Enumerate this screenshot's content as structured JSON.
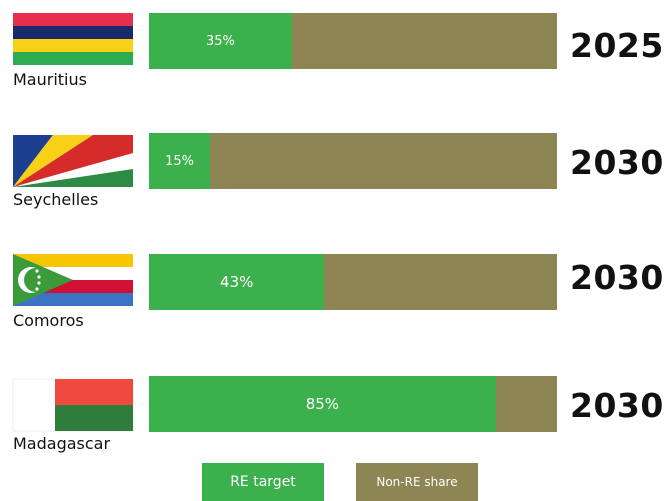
{
  "colors": {
    "re": "#3cb04c",
    "non_re": "#8d8654"
  },
  "chart_data": {
    "type": "bar",
    "orientation": "horizontal",
    "stacked": true,
    "categories": [
      "Mauritius",
      "Seychelles",
      "Comoros",
      "Madagascar"
    ],
    "series": [
      {
        "name": "RE target",
        "values": [
          35,
          15,
          43,
          85
        ],
        "labels": [
          "35%",
          "15%",
          "43%",
          "85%"
        ],
        "color": "#3cb04c"
      },
      {
        "name": "Non-RE share",
        "values": [
          65,
          85,
          57,
          15
        ],
        "color": "#8d8654"
      }
    ],
    "target_years": [
      "2025",
      "2030",
      "2030",
      "2030"
    ],
    "xlim": [
      0,
      100
    ],
    "legend_position": "bottom"
  },
  "rows": [
    {
      "country": "Mauritius",
      "flag": "mauritius-flag",
      "re_label": "35%",
      "year": "2025"
    },
    {
      "country": "Seychelles",
      "flag": "seychelles-flag",
      "re_label": "15%",
      "year": "2030"
    },
    {
      "country": "Comoros",
      "flag": "comoros-flag",
      "re_label": "43%",
      "year": "2030"
    },
    {
      "country": "Madagascar",
      "flag": "madagascar-flag",
      "re_label": "85%",
      "year": "2030"
    }
  ],
  "legend": {
    "re_label": "RE target",
    "non_re_label": "Non-RE share"
  }
}
